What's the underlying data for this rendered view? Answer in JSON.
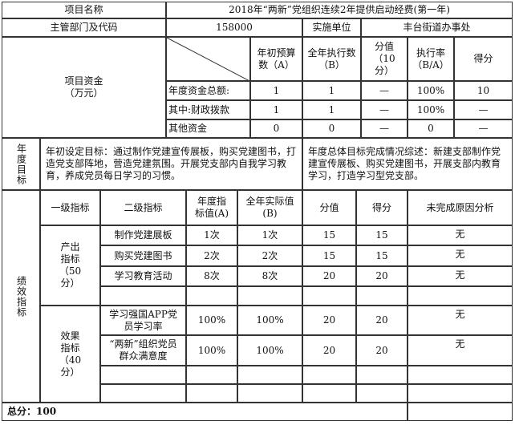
{
  "project": {
    "name_label": "项目名称",
    "name": "2018年“两新”党组织连续2年提供启动经费(第一年)",
    "dept_label": "主管部门及代码",
    "dept_code": "158000",
    "impl_label": "实施单位",
    "impl_unit": "丰台街道办事处"
  },
  "funds": {
    "label": "项目资金\n（万元）",
    "headers": [
      "年初预算数（A）",
      "全年执行数（B）",
      "分值（10分）",
      "执行率（B/A）",
      "得分"
    ],
    "rows": [
      {
        "name": "年度资金总额:",
        "a": "1",
        "b": "1",
        "score_value": "—",
        "rate": "100%",
        "score": "10"
      },
      {
        "name": "其中:财政拨款",
        "a": "1",
        "b": "1",
        "score_value": "—",
        "rate": "100%",
        "score": "—"
      },
      {
        "name": "其他资金",
        "a": "0",
        "b": "0",
        "score_value": "—",
        "rate": "0",
        "score": "—"
      }
    ]
  },
  "goals": {
    "label": "年度目标",
    "initial": "年初设定目标：通过制作党建宣传展板，购买党建图书，打造党支部阵地，营造党建氛围。开展党支部内自我学习教育，养成党员每日学习的习惯。",
    "summary": "年度总体目标完成情况综述：新建支部制作党建宣传展板、购买党建图书，开展支部内教育学习，打造学习型党支部。"
  },
  "performance": {
    "label": "绩效指标",
    "headers": [
      "一级指标",
      "二级指标",
      "年度指标值(A)",
      "全年实际值(B)",
      "分值",
      "得分",
      "未完成原因分析"
    ],
    "groups": [
      {
        "name": "产出指标（50分）",
        "rows": [
          {
            "name": "制作党建展板",
            "a": "1次",
            "b": "1次",
            "value": "15",
            "score": "15",
            "reason": "无"
          },
          {
            "name": "购买党建图书",
            "a": "2次",
            "b": "2次",
            "value": "15",
            "score": "15",
            "reason": "无"
          },
          {
            "name": "学习教育活动",
            "a": "8次",
            "b": "8次",
            "value": "20",
            "score": "20",
            "reason": "无"
          }
        ]
      },
      {
        "name": "效果指标（40分）",
        "rows": [
          {
            "name": "学习强国APP党员学习率",
            "a": "100%",
            "b": "100%",
            "value": "20",
            "score": "20",
            "reason": "无"
          },
          {
            "name": "“两新”组织党员群众满意度",
            "a": "100%",
            "b": "100%",
            "value": "20",
            "score": "20",
            "reason": "无"
          }
        ]
      }
    ]
  },
  "total": "总分：100"
}
